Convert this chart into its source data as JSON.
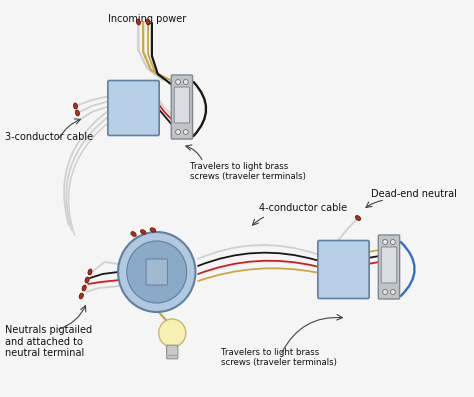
{
  "bg_color": "#f5f5f5",
  "fig_width": 4.74,
  "fig_height": 3.97,
  "dpi": 100,
  "labels": {
    "incoming_power": "Incoming power",
    "three_conductor": "3-conductor cable",
    "travelers_top": "Travelers to light brass\nscrews (traveler terminals)",
    "four_conductor": "4-conductor cable",
    "dead_end": "Dead-end neutral",
    "neutrals": "Neutrals pigtailed\nand attached to\nneutral terminal",
    "travelers_bottom": "Travelers to light brass\nscrews (traveler terminals)"
  },
  "colors": {
    "box_fill": "#b8cfe8",
    "box_edge": "#6080a0",
    "box_shadow": "#8090a8",
    "switch_body": "#c0c4c8",
    "switch_edge": "#808890",
    "switch_detail": "#d8dce0",
    "wire_white": "#d0d0d0",
    "wire_black": "#181818",
    "wire_red": "#cc2020",
    "wire_bare": "#c8a840",
    "wire_blue": "#3070c0",
    "cap_fill": "#aa3322",
    "cap_edge": "#661100",
    "light_globe": "#f8f0b0",
    "light_globe_edge": "#c8b870",
    "light_base": "#c8c8c8",
    "light_filament": "#e0c840",
    "label_color": "#111111",
    "arrow_color": "#444444",
    "circle_fill": "#b0c8e0",
    "circle_inner": "#8aaac8",
    "circle_edge": "#6080a0"
  },
  "font_size": 7.0,
  "small_font": 6.2,
  "wire_lw": 1.3,
  "cap_size": 5.5
}
